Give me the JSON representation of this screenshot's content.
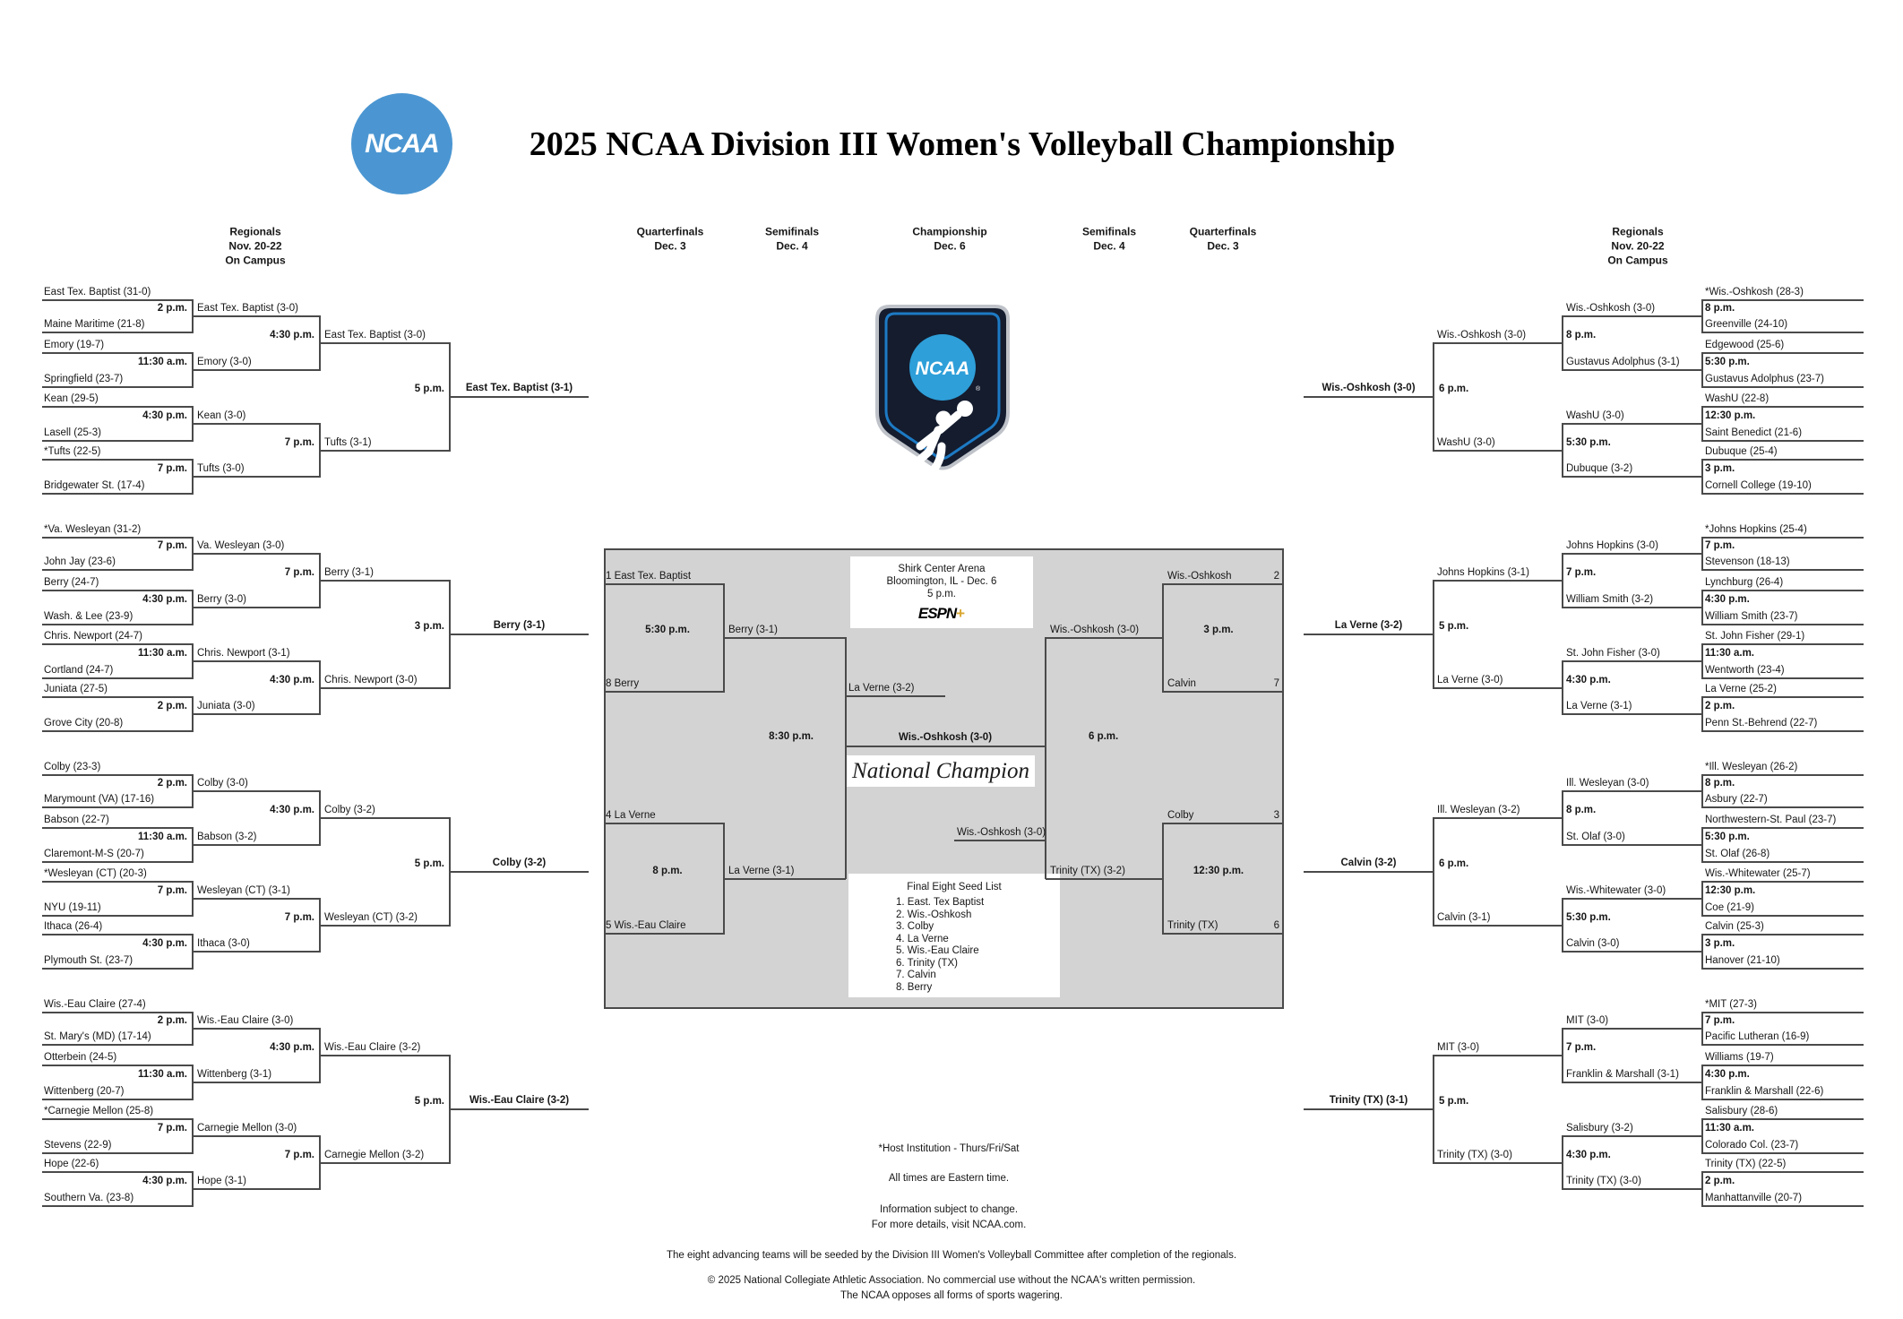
{
  "title": "2025 NCAA Division III Women's Volleyball Championship",
  "logo": {
    "text": "NCAA",
    "registered": "®"
  },
  "round_headers": [
    {
      "lines": [
        "Regionals",
        "Nov. 20-22",
        "On Campus"
      ]
    },
    {
      "lines": [
        "Quarterfinals",
        "Dec. 3"
      ]
    },
    {
      "lines": [
        "Semifinals",
        "Dec. 4"
      ]
    },
    {
      "lines": [
        "Championship",
        "Dec. 6"
      ]
    },
    {
      "lines": [
        "Semifinals",
        "Dec. 4"
      ]
    },
    {
      "lines": [
        "Quarterfinals",
        "Dec. 3"
      ]
    },
    {
      "lines": [
        "Regionals",
        "Nov. 20-22",
        "On Campus"
      ]
    }
  ],
  "bracket": {
    "left_quadrants": [
      {
        "teams": [
          "East Tex. Baptist (31-0)",
          "Maine Maritime (21-8)",
          "Emory (19-7)",
          "Springfield (23-7)",
          "Kean (29-5)",
          "Lasell (25-3)",
          "*Tufts (22-5)",
          "Bridgewater St. (17-4)"
        ],
        "r1_times": [
          "2 p.m.",
          "11:30 a.m.",
          "4:30 p.m.",
          "7 p.m."
        ],
        "r1_winners": [
          "East Tex. Baptist (3-0)",
          "Emory (3-0)",
          "Kean (3-0)",
          "Tufts (3-0)"
        ],
        "r2_times": [
          "4:30 p.m.",
          "7 p.m."
        ],
        "r2_winners": [
          "East Tex. Baptist (3-0)",
          "Tufts (3-1)"
        ],
        "final_time": "5 p.m.",
        "champion": "East Tex. Baptist (3-1)"
      },
      {
        "teams": [
          "*Va. Wesleyan (31-2)",
          "John Jay (23-6)",
          "Berry (24-7)",
          "Wash. & Lee (23-9)",
          "Chris. Newport (24-7)",
          "Cortland (24-7)",
          "Juniata (27-5)",
          "Grove City (20-8)"
        ],
        "r1_times": [
          "7 p.m.",
          "4:30 p.m.",
          "11:30 a.m.",
          "2 p.m."
        ],
        "r1_winners": [
          "Va. Wesleyan (3-0)",
          "Berry (3-0)",
          "Chris. Newport (3-1)",
          "Juniata (3-0)"
        ],
        "r2_times": [
          "7 p.m.",
          "4:30 p.m."
        ],
        "r2_winners": [
          "Berry (3-1)",
          "Chris. Newport (3-0)"
        ],
        "final_time": "3 p.m.",
        "champion": "Berry (3-1)"
      },
      {
        "teams": [
          "Colby (23-3)",
          "Marymount (VA) (17-16)",
          "Babson (22-7)",
          "Claremont-M-S (20-7)",
          "*Wesleyan (CT) (20-3)",
          "NYU (19-11)",
          "Ithaca (26-4)",
          "Plymouth St. (23-7)"
        ],
        "r1_times": [
          "2 p.m.",
          "11:30 a.m.",
          "7 p.m.",
          "4:30 p.m."
        ],
        "r1_winners": [
          "Colby (3-0)",
          "Babson (3-2)",
          "Wesleyan (CT) (3-1)",
          "Ithaca (3-0)"
        ],
        "r2_times": [
          "4:30 p.m.",
          "7 p.m."
        ],
        "r2_winners": [
          "Colby (3-2)",
          "Wesleyan (CT) (3-2)"
        ],
        "final_time": "5 p.m.",
        "champion": "Colby (3-2)"
      },
      {
        "teams": [
          "Wis.-Eau Claire (27-4)",
          "St. Mary's (MD) (17-14)",
          "Otterbein (24-5)",
          "Wittenberg (20-7)",
          "*Carnegie Mellon (25-8)",
          "Stevens (22-9)",
          "Hope (22-6)",
          "Southern Va. (23-8)"
        ],
        "r1_times": [
          "2 p.m.",
          "11:30 a.m.",
          "7 p.m.",
          "4:30 p.m."
        ],
        "r1_winners": [
          "Wis.-Eau Claire (3-0)",
          "Wittenberg (3-1)",
          "Carnegie Mellon (3-0)",
          "Hope (3-1)"
        ],
        "r2_times": [
          "4:30 p.m.",
          "7 p.m."
        ],
        "r2_winners": [
          "Wis.-Eau Claire (3-2)",
          "Carnegie Mellon (3-2)"
        ],
        "final_time": "5 p.m.",
        "champion": "Wis.-Eau Claire (3-2)"
      }
    ],
    "right_quadrants": [
      {
        "teams": [
          "*Wis.-Oshkosh (28-3)",
          "Greenville (24-10)",
          "Edgewood (25-6)",
          "Gustavus Adolphus (23-7)",
          "WashU (22-8)",
          "Saint Benedict (21-6)",
          "Dubuque (25-4)",
          "Cornell College (19-10)"
        ],
        "r1_times": [
          "8 p.m.",
          "5:30 p.m.",
          "12:30 p.m.",
          "3 p.m."
        ],
        "r1_winners": [
          "Wis.-Oshkosh (3-0)",
          "Gustavus Adolphus (3-1)",
          "WashU (3-0)",
          "Dubuque (3-2)"
        ],
        "r2_times": [
          "8 p.m.",
          "5:30 p.m."
        ],
        "r2_winners": [
          "Wis.-Oshkosh (3-0)",
          "WashU (3-0)"
        ],
        "final_time": "6 p.m.",
        "champion": "Wis.-Oshkosh (3-0)"
      },
      {
        "teams": [
          "*Johns Hopkins (25-4)",
          "Stevenson (18-13)",
          "Lynchburg (26-4)",
          "William Smith (23-7)",
          "St. John Fisher (29-1)",
          "Wentworth (23-4)",
          "La Verne (25-2)",
          "Penn St.-Behrend (22-7)"
        ],
        "r1_times": [
          "7 p.m.",
          "4:30 p.m.",
          "11:30 a.m.",
          "2 p.m."
        ],
        "r1_winners": [
          "Johns Hopkins (3-0)",
          "William Smith (3-2)",
          "St. John Fisher (3-0)",
          "La Verne (3-1)"
        ],
        "r2_times": [
          "7 p.m.",
          "4:30 p.m."
        ],
        "r2_winners": [
          "Johns Hopkins (3-1)",
          "La Verne (3-0)"
        ],
        "final_time": "5 p.m.",
        "champion": "La Verne (3-2)"
      },
      {
        "teams": [
          "*Ill. Wesleyan (26-2)",
          "Asbury (22-7)",
          "Northwestern-St. Paul (23-7)",
          "St. Olaf (26-8)",
          "Wis.-Whitewater (25-7)",
          "Coe (21-9)",
          "Calvin (25-3)",
          "Hanover (21-10)"
        ],
        "r1_times": [
          "8 p.m.",
          "5:30 p.m.",
          "12:30 p.m.",
          "3 p.m."
        ],
        "r1_winners": [
          "Ill. Wesleyan (3-0)",
          "St. Olaf (3-0)",
          "Wis.-Whitewater (3-0)",
          "Calvin (3-0)"
        ],
        "r2_times": [
          "8 p.m.",
          "5:30 p.m."
        ],
        "r2_winners": [
          "Ill. Wesleyan (3-2)",
          "Calvin (3-1)"
        ],
        "final_time": "6 p.m.",
        "champion": "Calvin (3-2)"
      },
      {
        "teams": [
          "*MIT (27-3)",
          "Pacific Lutheran (16-9)",
          "Williams (19-7)",
          "Franklin & Marshall (22-6)",
          "Salisbury (28-6)",
          "Colorado Col. (23-7)",
          "Trinity (TX) (22-5)",
          "Manhattanville (20-7)"
        ],
        "r1_times": [
          "7 p.m.",
          "4:30 p.m.",
          "11:30 a.m.",
          "2 p.m."
        ],
        "r1_winners": [
          "MIT (3-0)",
          "Franklin & Marshall (3-1)",
          "Salisbury (3-2)",
          "Trinity (TX) (3-0)"
        ],
        "r2_times": [
          "7 p.m.",
          "4:30 p.m."
        ],
        "r2_winners": [
          "MIT (3-0)",
          "Trinity (TX) (3-0)"
        ],
        "final_time": "5 p.m.",
        "champion": "Trinity (TX) (3-1)"
      }
    ]
  },
  "center": {
    "trophy": {
      "ncaa": "NCAA",
      "registered": "®"
    },
    "venue": {
      "line1": "Shirk Center Arena",
      "line2": "Bloomington, IL - Dec. 6",
      "line3": "5 p.m.",
      "network": "ESPN",
      "network_plus": "+"
    },
    "quarterfinals_left": [
      {
        "top": "1 East Tex. Baptist",
        "bottom": "8 Berry",
        "time": "5:30 p.m.",
        "winner": "Berry (3-1)"
      },
      {
        "top": "4 La Verne",
        "bottom": "5 Wis.-Eau Claire",
        "time": "8 p.m.",
        "winner": "La Verne (3-1)"
      }
    ],
    "quarterfinals_right": [
      {
        "top": "Wis.-Oshkosh",
        "top_seed": "2",
        "bottom": "Calvin",
        "bottom_seed": "7",
        "time": "3 p.m.",
        "winner": "Wis.-Oshkosh (3-0)"
      },
      {
        "top": "Colby",
        "top_seed": "3",
        "bottom": "Trinity (TX)",
        "bottom_seed": "6",
        "time": "12:30 p.m.",
        "winner": "Trinity (TX) (3-2)"
      }
    ],
    "semifinal_left": {
      "time": "8:30 p.m.",
      "winner": "La Verne (3-2)"
    },
    "semifinal_right": {
      "time": "6 p.m.",
      "winner": "Wis.-Oshkosh (3-0)"
    },
    "championship": {
      "winner": "Wis.-Oshkosh (3-0)",
      "label": "National Champion"
    },
    "seed_list": {
      "title": "Final Eight Seed List",
      "items": [
        "1. East. Tex Baptist",
        "2. Wis.-Oshkosh",
        "3. Colby",
        "4. La Verne",
        "5. Wis.-Eau Claire",
        "6. Trinity (TX)",
        "7. Calvin",
        "8. Berry"
      ]
    }
  },
  "notes": {
    "host": "*Host Institution - Thurs/Fri/Sat",
    "times": "All times are Eastern time.",
    "info1": "Information subject to change.",
    "info2": "For more details, visit NCAA.com.",
    "seeding": "The eight advancing teams will be seeded by the Division III Women's Volleyball Committee after completion of the regionals.",
    "copyright": "© 2025 National Collegiate Athletic Association. No commercial use without the NCAA's written permission.",
    "wagering": "The NCAA opposes all forms of sports wagering."
  },
  "colors": {
    "ncaa_blue": "#4b96d2",
    "trophy_navy": "#141c2e",
    "trophy_blue_ring": "#1d7ac4",
    "trophy_circle_blue": "#2e9fd9",
    "trophy_silver": "#bfc3c9",
    "espn_gold": "#d9a62e",
    "center_box_gray": "#d3d3d3",
    "line_gray": "#4a4a4a"
  }
}
